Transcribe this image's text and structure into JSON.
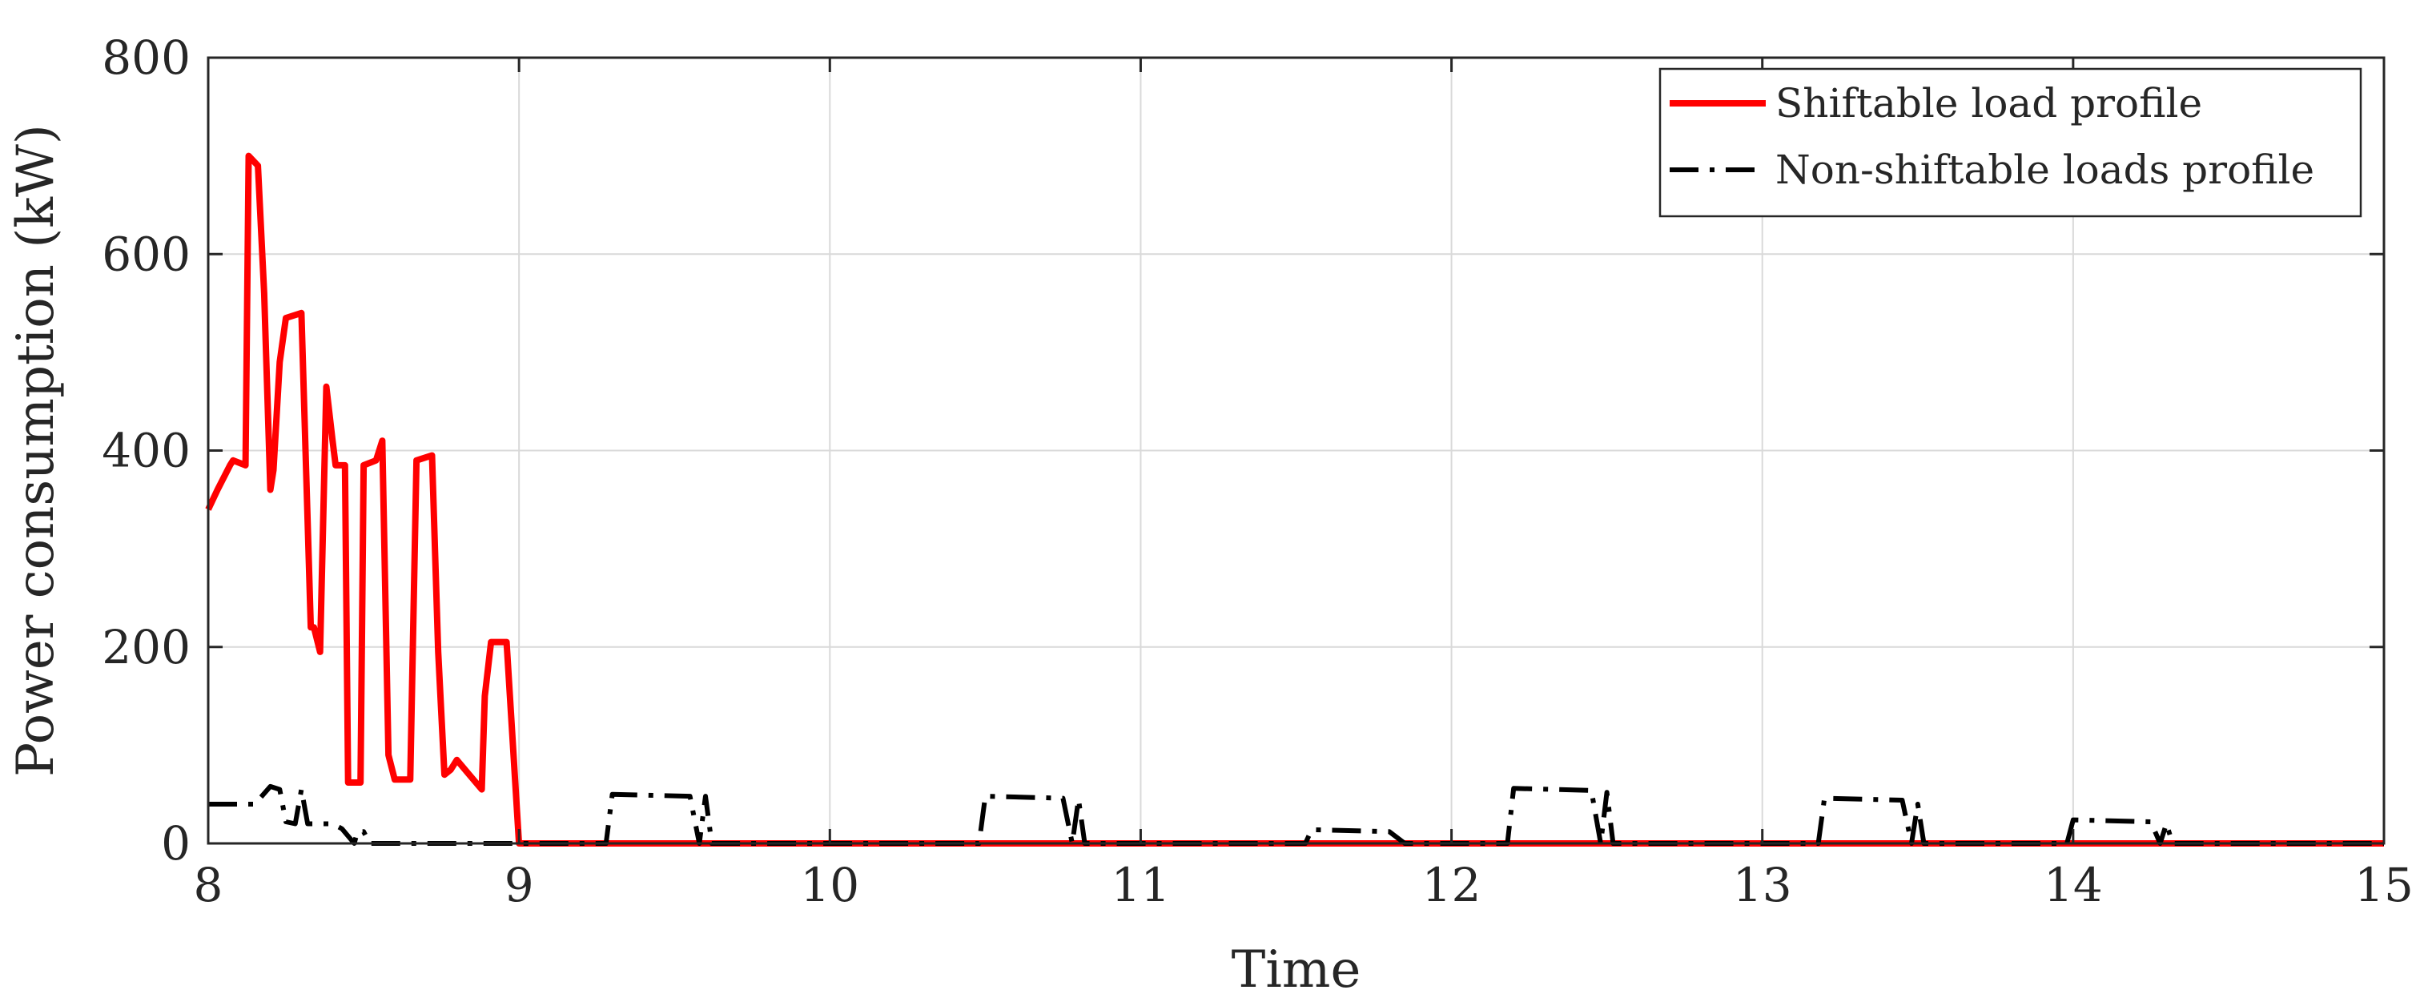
{
  "chart_data": {
    "type": "line",
    "xlabel": "Time",
    "ylabel": "Power consumption (kW)",
    "xlim": [
      8,
      15
    ],
    "ylim": [
      0,
      800
    ],
    "xticks": [
      8,
      9,
      10,
      11,
      12,
      13,
      14,
      15
    ],
    "xtick_labels": [
      "8",
      "9",
      "10",
      "11",
      "12",
      "13",
      "14",
      "15"
    ],
    "yticks": [
      0,
      200,
      400,
      600,
      800
    ],
    "ytick_labels": [
      "0",
      "200",
      "400",
      "600",
      "800"
    ],
    "grid": true,
    "legend_position": "top-right",
    "series": [
      {
        "name": "Shiftable load profile",
        "color": "#ff0000",
        "style": "solid",
        "x": [
          8.0,
          8.03,
          8.07,
          8.08,
          8.12,
          8.13,
          8.16,
          8.18,
          8.2,
          8.21,
          8.23,
          8.25,
          8.3,
          8.33,
          8.34,
          8.36,
          8.38,
          8.4,
          8.41,
          8.44,
          8.45,
          8.49,
          8.5,
          8.54,
          8.56,
          8.58,
          8.6,
          8.65,
          8.67,
          8.72,
          8.74,
          8.76,
          8.78,
          8.8,
          8.84,
          8.88,
          8.89,
          8.91,
          8.96,
          9.0,
          9.05,
          15.0
        ],
        "values": [
          340,
          360,
          385,
          390,
          385,
          700,
          690,
          560,
          360,
          380,
          490,
          535,
          540,
          220,
          220,
          195,
          465,
          410,
          385,
          385,
          62,
          62,
          385,
          390,
          410,
          90,
          65,
          65,
          390,
          395,
          195,
          70,
          75,
          85,
          70,
          55,
          150,
          205,
          205,
          0,
          0,
          0
        ]
      },
      {
        "name": "Non-shiftable loads profile",
        "color": "#000000",
        "style": "dashdot",
        "x": [
          8.0,
          8.15,
          8.2,
          8.23,
          8.25,
          8.28,
          8.3,
          8.32,
          8.4,
          8.43,
          8.47,
          8.48,
          8.5,
          8.52,
          8.55,
          9.28,
          9.3,
          9.55,
          9.58,
          9.6,
          9.62,
          9.64,
          10.48,
          10.5,
          10.75,
          10.78,
          10.8,
          10.82,
          10.84,
          11.53,
          11.55,
          11.8,
          11.85,
          11.9,
          12.18,
          12.2,
          12.45,
          12.48,
          12.5,
          12.52,
          12.55,
          13.18,
          13.2,
          13.45,
          13.48,
          13.5,
          13.52,
          13.55,
          13.98,
          14.0,
          14.25,
          14.28,
          14.3,
          14.32,
          14.35,
          15.0
        ],
        "values": [
          40,
          40,
          58,
          55,
          22,
          20,
          55,
          20,
          20,
          15,
          0,
          12,
          12,
          0,
          0,
          0,
          50,
          48,
          0,
          48,
          0,
          0,
          0,
          48,
          46,
          0,
          45,
          0,
          0,
          0,
          14,
          12,
          0,
          0,
          0,
          56,
          54,
          0,
          52,
          0,
          0,
          0,
          46,
          44,
          0,
          40,
          0,
          0,
          0,
          24,
          22,
          0,
          20,
          0,
          0,
          0
        ]
      }
    ]
  }
}
